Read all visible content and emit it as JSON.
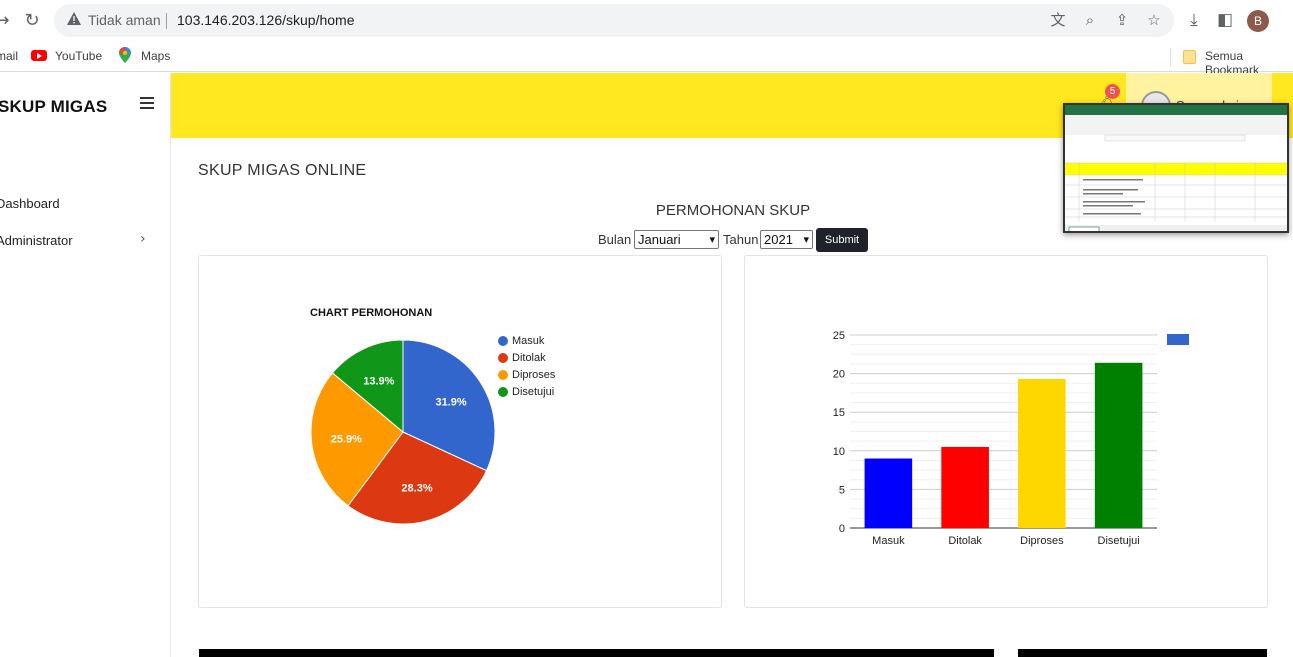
{
  "browser": {
    "insecure_label": "Tidak aman",
    "url": "103.146.203.126/skup/home",
    "profile_initial": "B"
  },
  "bookmarks": {
    "items": [
      "mail",
      "YouTube",
      "Maps"
    ],
    "right_folder": "Semua Bookmark"
  },
  "app": {
    "brand": "SKUP MIGAS",
    "notification_count": "5",
    "user_name": "Superadmin",
    "sidebar": [
      {
        "label": "Dashboard"
      },
      {
        "label": "Administrator"
      }
    ],
    "page_heading": "SKUP MIGAS ONLINE",
    "section_title": "PERMOHONAN SKUP",
    "filter": {
      "bulan_label": "Bulan",
      "bulan_value": "Januari",
      "tahun_label": "Tahun",
      "tahun_value": "2021",
      "submit_label": "Submit"
    }
  },
  "colors": {
    "topbar": "#ffe81f",
    "masuk": "#3366cc",
    "ditolak": "#dc3912",
    "diproses": "#ff9900",
    "disetujui": "#109618"
  },
  "chart_data": [
    {
      "type": "pie",
      "title": "CHART PERMOHONAN",
      "categories": [
        "Masuk",
        "Ditolak",
        "Diproses",
        "Disetujui"
      ],
      "values": [
        31.9,
        28.3,
        25.9,
        13.9
      ],
      "labels": [
        "31.9%",
        "28.3%",
        "25.9%",
        "13.9%"
      ],
      "colors": [
        "#3366cc",
        "#dc3912",
        "#ff9900",
        "#109618"
      ],
      "legend": "right"
    },
    {
      "type": "bar",
      "categories": [
        "Masuk",
        "Ditolak",
        "Diproses",
        "Disetujui"
      ],
      "values": [
        9,
        10.5,
        19.3,
        21.4
      ],
      "colors": [
        "#0000ff",
        "#ff0000",
        "#ffd700",
        "#008000"
      ],
      "ylim": [
        0,
        25
      ],
      "yticks": [
        0,
        5,
        10,
        15,
        20,
        25
      ],
      "grid": true,
      "legend": "top-right"
    }
  ]
}
